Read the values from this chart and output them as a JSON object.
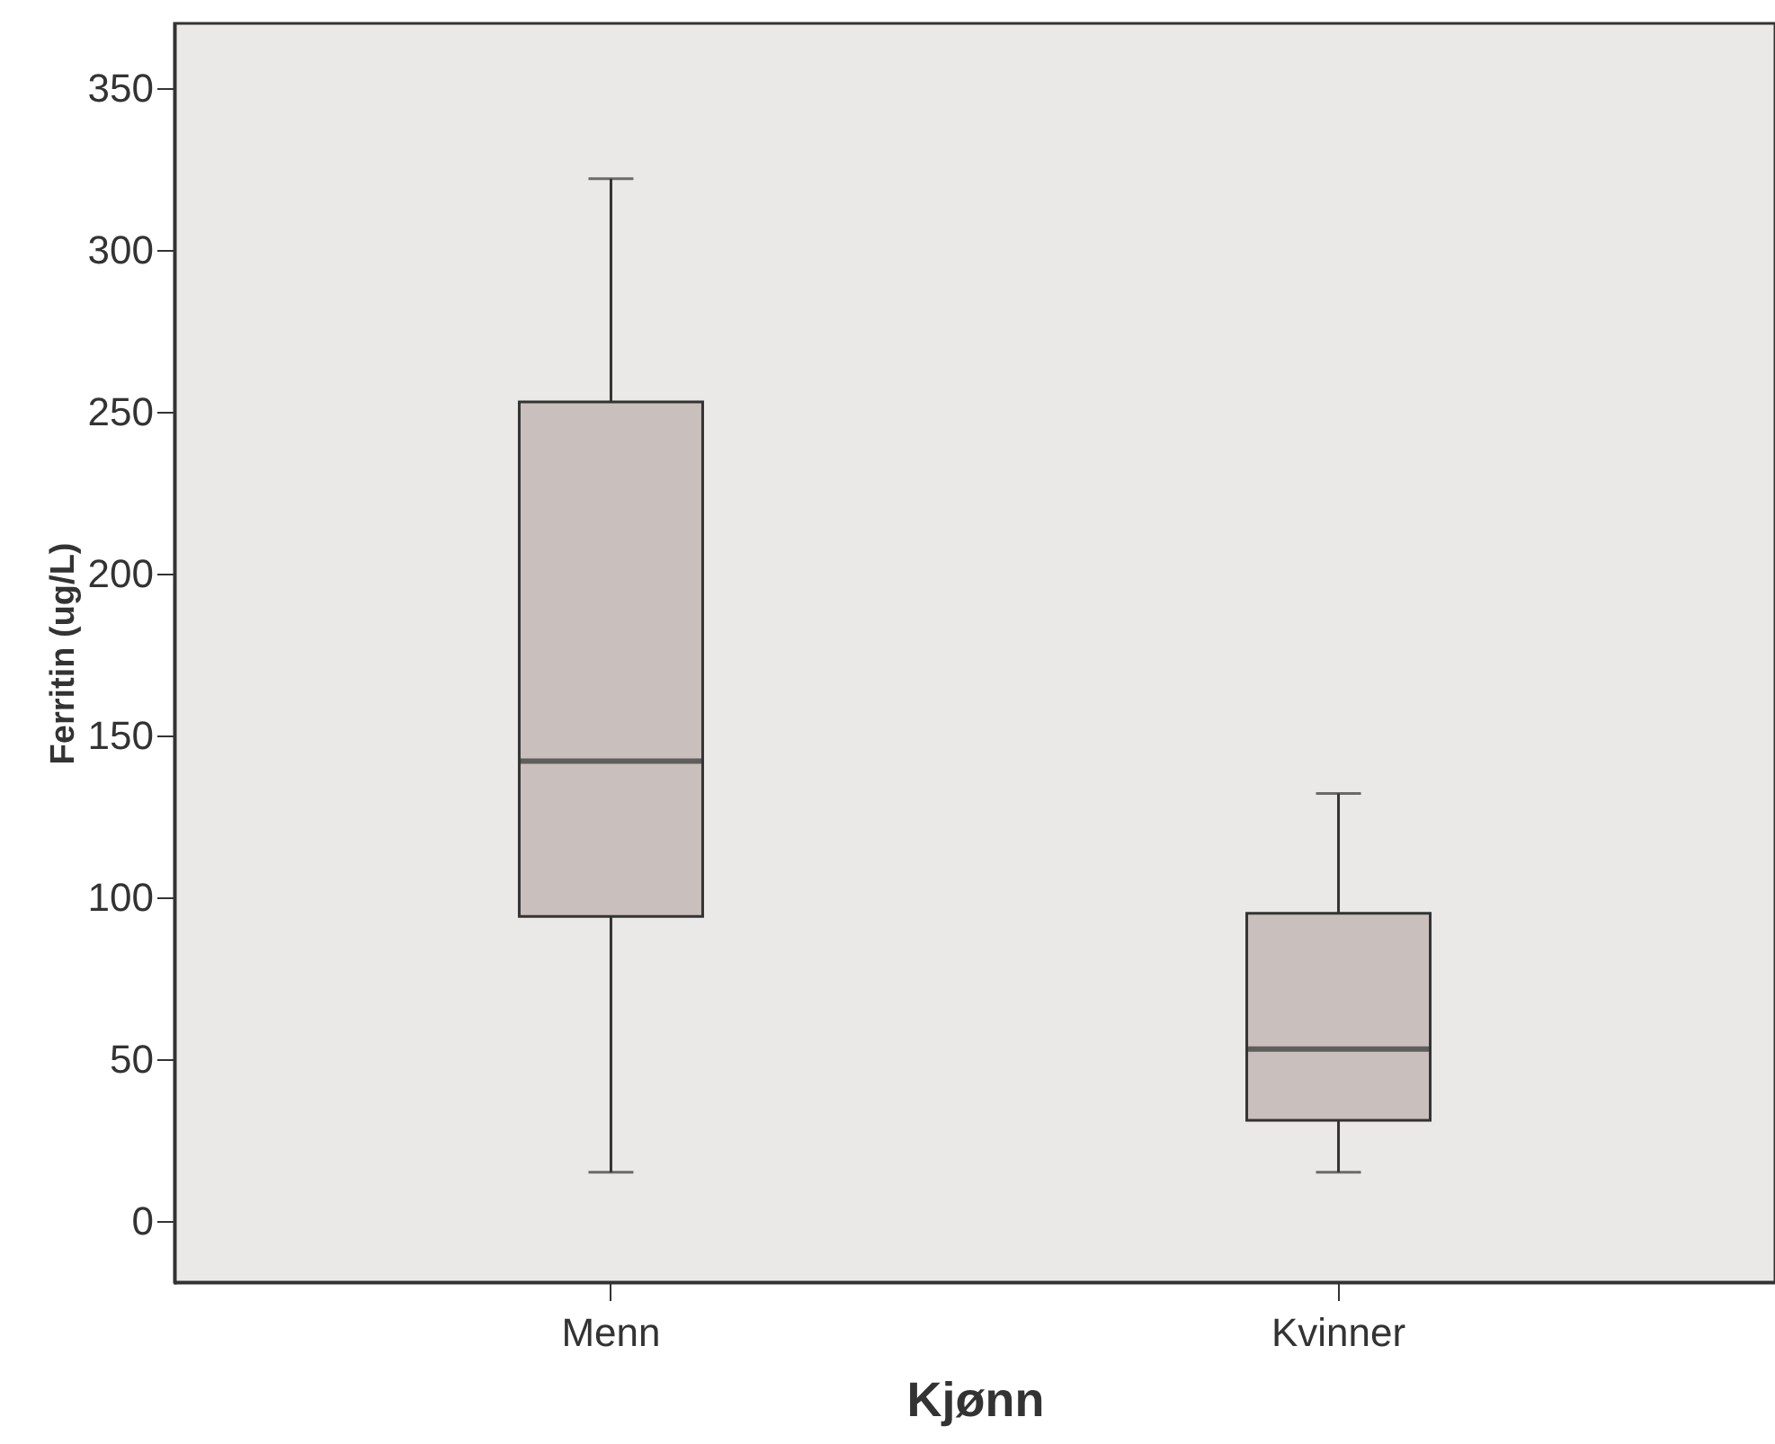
{
  "chart_data": {
    "type": "box",
    "xlabel": "Kjønn",
    "ylabel": "Ferritin (ug/L)",
    "categories": [
      "Menn",
      "Kvinner"
    ],
    "series": [
      {
        "color": "#c9c0bd",
        "boxes": [
          {
            "low": 15,
            "q1": 94,
            "median": 142,
            "q3": 253,
            "high": 322
          },
          {
            "low": 15,
            "q1": 31,
            "median": 53,
            "q3": 95,
            "high": 132
          }
        ]
      }
    ],
    "ylim": [
      -19,
      370
    ],
    "yticks": [
      0,
      50,
      100,
      150,
      200,
      250,
      300,
      350
    ],
    "grid": false
  }
}
